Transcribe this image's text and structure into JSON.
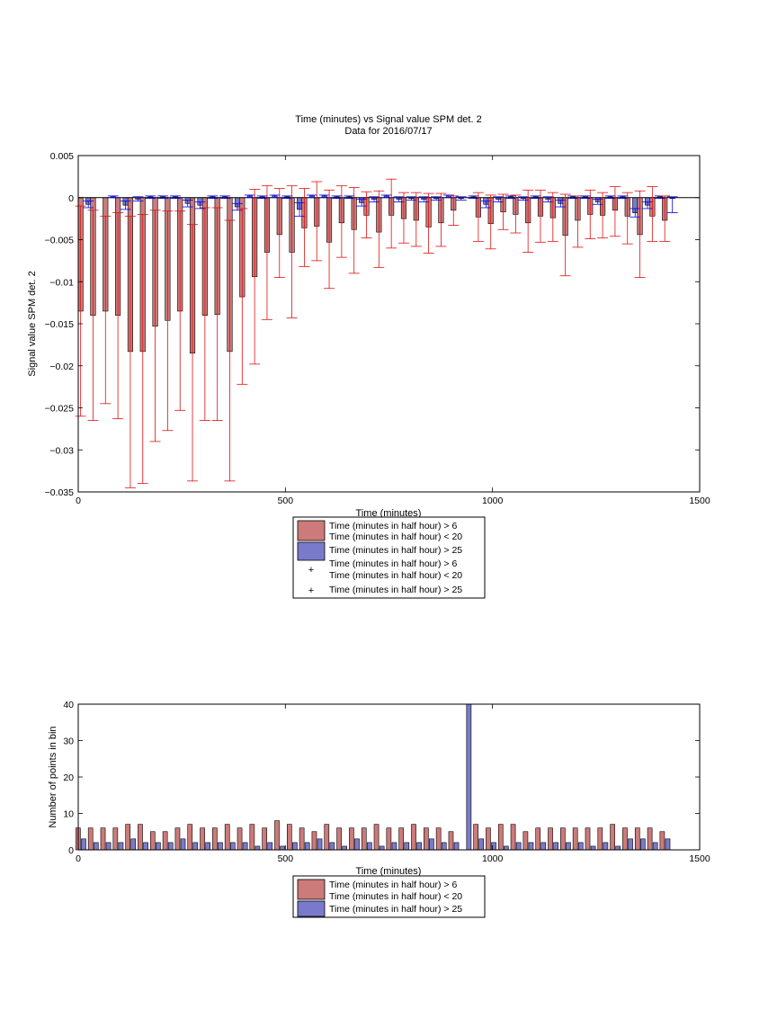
{
  "colors": {
    "red_fill": "#cc7a7a",
    "blue_fill": "#7a7acc",
    "red_err": "#e01010",
    "blue_err": "#0000ee",
    "axis": "#000000"
  },
  "chart_data": [
    {
      "type": "bar",
      "title": "Time (minutes) vs Signal value SPM det. 2",
      "subtitle": "Data for 2016/07/17",
      "xlabel": "Time (minutes)",
      "ylabel": "Signal value SPM det. 2",
      "xlim": [
        0,
        1500
      ],
      "ylim": [
        -0.035,
        0.005
      ],
      "xticks": [
        0,
        500,
        1000,
        1500
      ],
      "xtick_labels": [
        "0",
        "500",
        "1000",
        "1500"
      ],
      "yticks": [
        0.005,
        0,
        -0.005,
        -0.01,
        -0.015,
        -0.02,
        -0.025,
        -0.03,
        -0.035
      ],
      "ytick_labels": [
        "0.005",
        "0",
        "−0.005",
        "−0.01",
        "−0.015",
        "−0.02",
        "−0.025",
        "−0.03",
        "−0.035"
      ],
      "grid": false,
      "legend_position": "below",
      "legend": [
        {
          "kind": "bar",
          "color": "red",
          "lines": [
            "Time (minutes in half hour) > 6",
            "Time (minutes in half hour) < 20"
          ]
        },
        {
          "kind": "bar",
          "color": "blue",
          "lines": [
            "Time (minutes in half hour) > 25"
          ]
        },
        {
          "kind": "marker",
          "color": "red",
          "lines": [
            "Time (minutes in half hour) > 6",
            "Time (minutes in half hour) < 20"
          ]
        },
        {
          "kind": "marker",
          "color": "blue",
          "lines": [
            "Time (minutes in half hour) > 25"
          ]
        }
      ],
      "x": [
        15,
        45,
        75,
        105,
        135,
        165,
        195,
        225,
        255,
        285,
        315,
        345,
        375,
        405,
        435,
        465,
        495,
        525,
        555,
        585,
        615,
        645,
        675,
        705,
        735,
        765,
        795,
        825,
        855,
        885,
        915,
        945,
        975,
        1005,
        1035,
        1065,
        1095,
        1125,
        1155,
        1185,
        1215,
        1245,
        1275,
        1305,
        1335,
        1365,
        1395,
        1425
      ],
      "series": [
        {
          "name": "Time (minutes in half hour) > 6 / Time (minutes in half hour) < 20",
          "values": [
            -0.0135,
            -0.014,
            -0.0135,
            -0.014,
            -0.0183,
            -0.0183,
            -0.0153,
            -0.0146,
            -0.0135,
            -0.0185,
            -0.014,
            -0.0139,
            -0.0183,
            -0.0118,
            -0.0094,
            -0.0065,
            -0.0044,
            -0.0065,
            -0.0036,
            -0.0034,
            -0.0053,
            -0.003,
            -0.0038,
            -0.0021,
            -0.0041,
            -0.0021,
            -0.0025,
            -0.0027,
            -0.0035,
            -0.003,
            -0.0015,
            null,
            -0.0023,
            -0.0031,
            -0.0017,
            -0.002,
            -0.003,
            -0.0022,
            -0.0024,
            -0.0045,
            -0.0027,
            -0.002,
            -0.0021,
            -0.0015,
            -0.0022,
            -0.0044,
            -0.0022,
            -0.0027
          ],
          "err_low": [
            -0.026,
            -0.0265,
            -0.0245,
            -0.0263,
            -0.0345,
            -0.034,
            -0.029,
            -0.0277,
            -0.0253,
            -0.0337,
            -0.0265,
            -0.0265,
            -0.0337,
            -0.0222,
            -0.0198,
            -0.0145,
            -0.0095,
            -0.0143,
            -0.0082,
            -0.0075,
            -0.0108,
            -0.0071,
            -0.009,
            -0.0048,
            -0.0083,
            -0.006,
            -0.0054,
            -0.0058,
            -0.0066,
            -0.0058,
            -0.0033,
            null,
            -0.0052,
            -0.0061,
            -0.0038,
            -0.0042,
            -0.0065,
            -0.0053,
            -0.0052,
            -0.0093,
            -0.0059,
            -0.0049,
            -0.0048,
            -0.0046,
            -0.0055,
            -0.0095,
            -0.0052,
            -0.0052
          ],
          "err_high": [
            -0.001,
            -0.0015,
            -0.0022,
            -0.0018,
            -0.0022,
            -0.002,
            -0.0015,
            -0.0016,
            -0.0016,
            -0.0032,
            -0.0012,
            -0.0012,
            -0.0027,
            -0.0013,
            0.001,
            0.0014,
            0.0011,
            0.0014,
            0.0011,
            0.0019,
            0.0009,
            0.0014,
            0.0012,
            0.0007,
            0.0008,
            0.0022,
            0.0006,
            0.0006,
            0.0005,
            0.0005,
            0.0002,
            null,
            0.0006,
            0.0003,
            0.0004,
            0.0003,
            0.0009,
            0.0009,
            0.0006,
            0.0004,
            0.0002,
            0.0009,
            0.0006,
            0.0013,
            0.0006,
            0.0008,
            0.0013,
            0.0002
          ]
        },
        {
          "name": "Time (minutes in half hour) > 25",
          "values": [
            -0.0008,
            null,
            0.0001,
            -0.0009,
            -0.0002,
            0.0001,
            0.0001,
            0.0001,
            -0.0007,
            -0.0009,
            0.0001,
            0.0001,
            -0.0011,
            0.0002,
            0.0001,
            0.0002,
            0.0001,
            -0.0014,
            0.0002,
            0.0002,
            0.0001,
            0.0001,
            -0.0006,
            -0.0002,
            0.0002,
            -0.0002,
            -0.0001,
            -0.0002,
            -0.0001,
            0.0002,
            -0.0001,
            0.0001,
            -0.0008,
            -0.0002,
            0.0001,
            -0.0001,
            0.0001,
            -0.0002,
            -0.0007,
            0.0001,
            0.0001,
            -0.0005,
            0.0001,
            0.0001,
            -0.0018,
            -0.0009,
            0.0001,
            -0.0001
          ],
          "err_low": [
            -0.0012,
            null,
            0.0,
            -0.0014,
            -0.0004,
            -0.0001,
            -0.0001,
            -0.0001,
            -0.0011,
            -0.0013,
            -0.0001,
            -0.0001,
            -0.0015,
            0.0,
            -0.0001,
            0.0,
            -0.0001,
            -0.0022,
            0.0,
            0.0,
            -0.0001,
            -0.0001,
            -0.001,
            -0.0005,
            0.0,
            -0.0005,
            -0.0003,
            -0.0005,
            -0.0003,
            0.0,
            -0.0003,
            -0.0001,
            -0.0012,
            -0.0005,
            -0.0001,
            -0.0003,
            -0.0001,
            -0.0005,
            -0.0011,
            -0.0001,
            -0.0001,
            -0.0008,
            -0.0001,
            -0.0001,
            -0.0023,
            -0.0013,
            -0.0001,
            -0.0018
          ],
          "err_high": [
            -0.0004,
            null,
            0.0002,
            -0.0004,
            0.0001,
            0.0002,
            0.0002,
            0.0002,
            -0.0003,
            -0.0005,
            0.0002,
            0.0002,
            -0.0007,
            0.0003,
            0.0002,
            0.0003,
            0.0002,
            -0.0006,
            0.0003,
            0.0003,
            0.0002,
            0.0002,
            -0.0002,
            0.0001,
            0.0003,
            0.0001,
            0.0001,
            0.0001,
            0.0001,
            0.0003,
            0.0001,
            0.0002,
            -0.0004,
            0.0001,
            0.0002,
            0.0001,
            0.0002,
            0.0001,
            -0.0003,
            0.0002,
            0.0002,
            -0.0002,
            0.0002,
            0.0002,
            -0.0013,
            -0.0005,
            0.0002,
            0.0001
          ]
        }
      ]
    },
    {
      "type": "bar",
      "title": "",
      "xlabel": "Time (minutes)",
      "ylabel": "Number of points in bin",
      "xlim": [
        0,
        1500
      ],
      "ylim": [
        0,
        40
      ],
      "xticks": [
        0,
        500,
        1000,
        1500
      ],
      "xtick_labels": [
        "0",
        "500",
        "1000",
        "1500"
      ],
      "yticks": [
        0,
        10,
        20,
        30,
        40
      ],
      "ytick_labels": [
        "0",
        "10",
        "20",
        "30",
        "40"
      ],
      "grid": false,
      "legend_position": "below",
      "legend": [
        {
          "kind": "bar",
          "color": "red",
          "lines": [
            "Time (minutes in half hour) > 6",
            "Time (minutes in half hour) < 20"
          ]
        },
        {
          "kind": "bar",
          "color": "blue",
          "lines": [
            "Time (minutes in half hour) > 25"
          ]
        }
      ],
      "x": [
        15,
        45,
        75,
        105,
        135,
        165,
        195,
        225,
        255,
        285,
        315,
        345,
        375,
        405,
        435,
        465,
        495,
        525,
        555,
        585,
        615,
        645,
        675,
        705,
        735,
        765,
        795,
        825,
        855,
        885,
        915,
        945,
        975,
        1005,
        1035,
        1065,
        1095,
        1125,
        1155,
        1185,
        1215,
        1245,
        1275,
        1305,
        1335,
        1365,
        1395,
        1425
      ],
      "series": [
        {
          "name": "Time (minutes in half hour) > 6 / Time (minutes in half hour) < 20",
          "values": [
            6,
            6,
            6,
            6,
            7,
            7,
            5,
            5,
            6,
            7,
            6,
            6,
            7,
            6,
            7,
            6,
            8,
            7,
            6,
            5,
            7,
            6,
            6,
            6,
            7,
            6,
            6,
            7,
            6,
            6,
            5,
            null,
            7,
            6,
            7,
            7,
            5,
            6,
            6,
            6,
            6,
            6,
            6,
            7,
            6,
            6,
            6,
            5
          ]
        },
        {
          "name": "Time (minutes in half hour) > 25",
          "values": [
            3,
            2,
            2,
            2,
            3,
            2,
            2,
            2,
            3,
            2,
            2,
            2,
            2,
            2,
            1,
            2,
            1,
            2,
            2,
            3,
            2,
            1,
            3,
            2,
            1,
            2,
            2,
            2,
            3,
            2,
            2,
            40,
            3,
            2,
            1,
            2,
            2,
            2,
            2,
            2,
            2,
            1,
            2,
            1,
            3,
            3,
            2,
            3
          ]
        }
      ]
    }
  ]
}
